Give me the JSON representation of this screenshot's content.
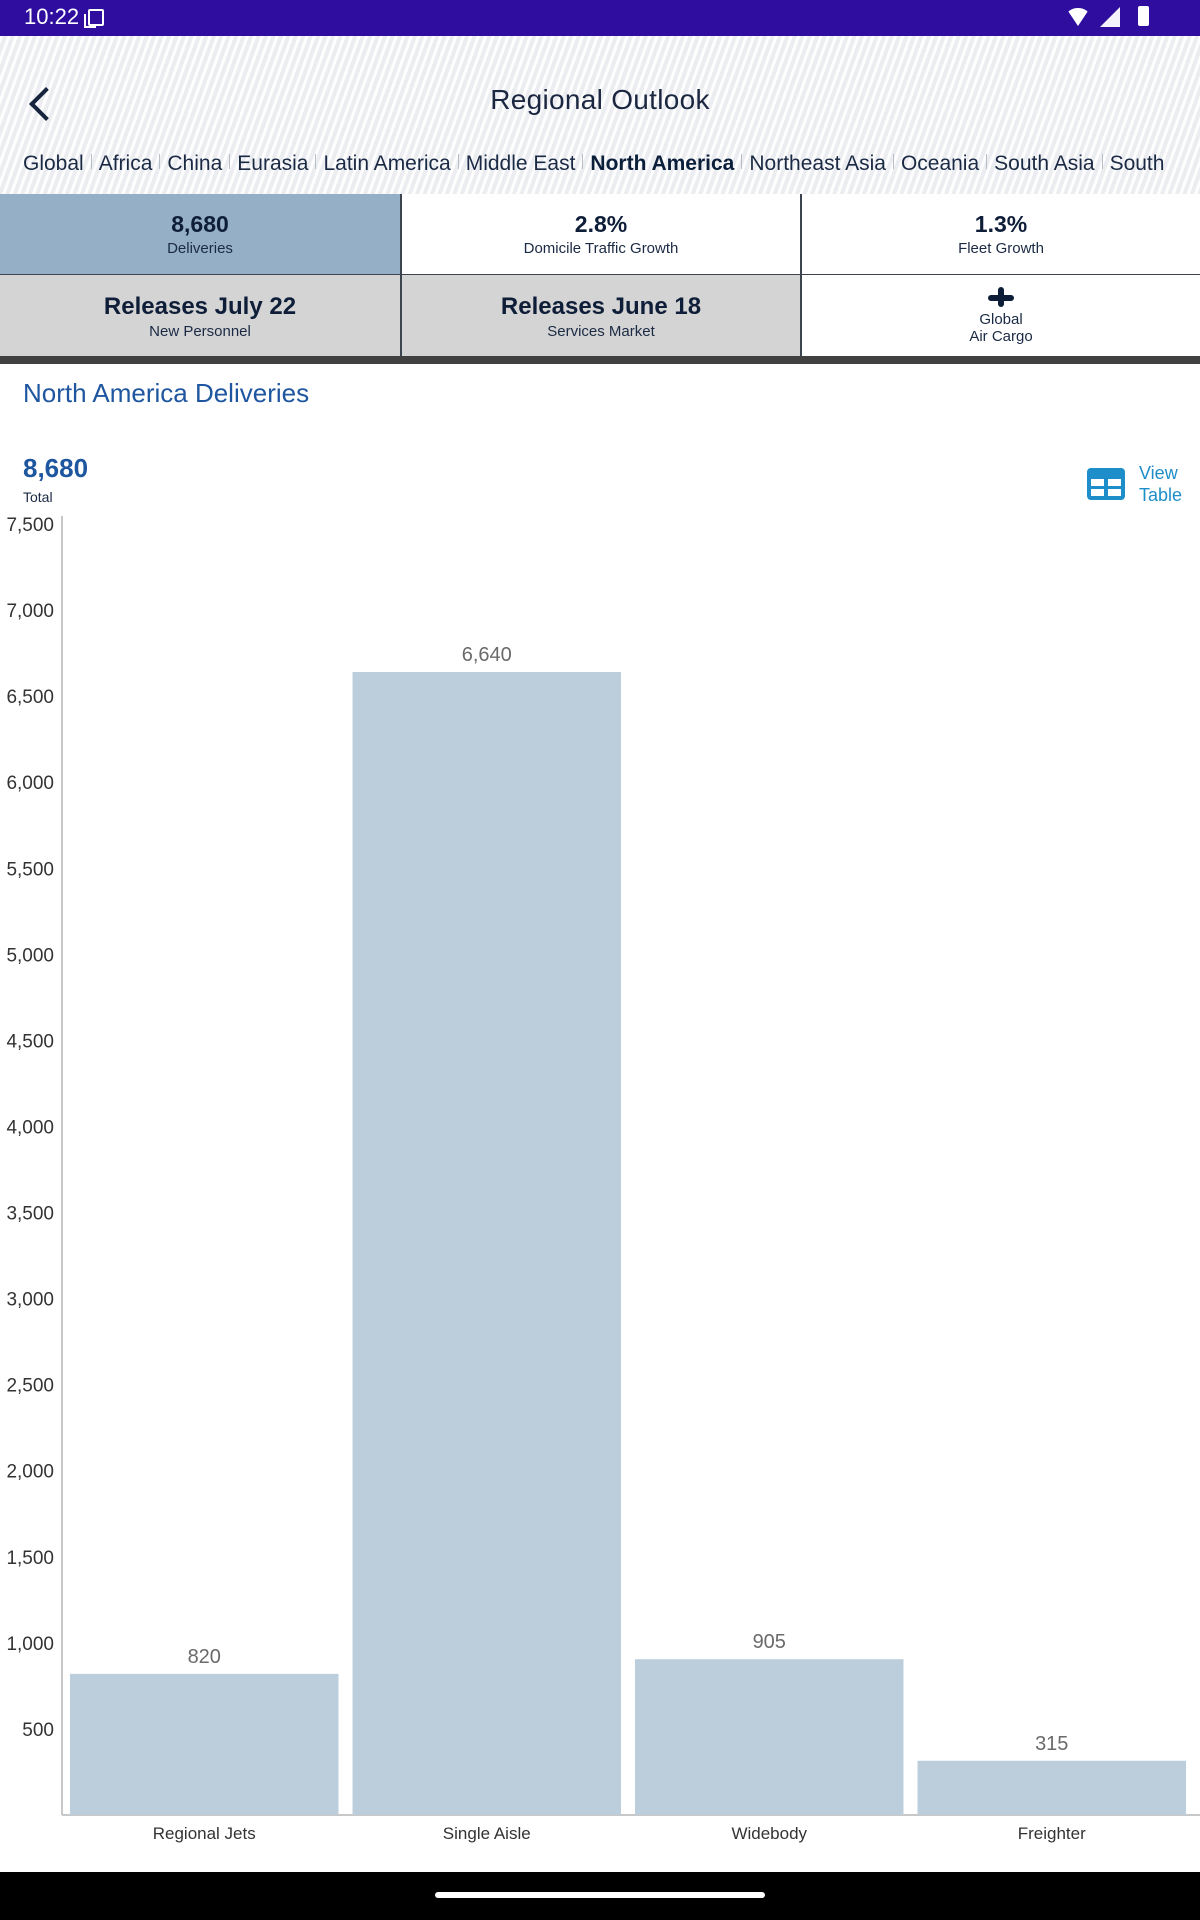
{
  "status_bar": {
    "time": "10:22",
    "icons": [
      "note-icon",
      "wifi-icon",
      "signal-icon",
      "battery-icon"
    ]
  },
  "header": {
    "title": "Regional Outlook",
    "back_icon": "chevron-left-icon"
  },
  "region_tabs": {
    "items": [
      "Global",
      "Africa",
      "China",
      "Eurasia",
      "Latin America",
      "Middle East",
      "North America",
      "Northeast Asia",
      "Oceania",
      "South Asia",
      "South"
    ],
    "active": "North America"
  },
  "stats": {
    "deliveries": {
      "value": "8,680",
      "label": "Deliveries"
    },
    "traffic": {
      "value": "2.8%",
      "label": "Domicile Traffic Growth"
    },
    "fleet": {
      "value": "1.3%",
      "label": "Fleet Growth"
    },
    "personnel": {
      "value": "Releases July 22",
      "label": "New Personnel"
    },
    "services": {
      "value": "Releases June 18",
      "label": "Services Market"
    },
    "cargo": {
      "line1": "Global",
      "line2": "Air Cargo",
      "icon": "airplane-cargo-icon"
    }
  },
  "chart_section": {
    "title": "North America Deliveries",
    "total_value": "8,680",
    "total_label": "Total",
    "view_table_line1": "View",
    "view_table_line2": "Table"
  },
  "chart_data": {
    "type": "bar",
    "categories": [
      "Regional Jets",
      "Single Aisle",
      "Widebody",
      "Freighter"
    ],
    "values": [
      820,
      6640,
      905,
      315
    ],
    "data_labels": [
      "820",
      "6,640",
      "905",
      "315"
    ],
    "ylim": [
      0,
      7500
    ],
    "yticks": [
      500,
      1000,
      1500,
      2000,
      2500,
      3000,
      3500,
      4000,
      4500,
      5000,
      5500,
      6000,
      6500,
      7000,
      7500
    ],
    "ytick_labels": [
      "500",
      "1,000",
      "1,500",
      "2,000",
      "2,500",
      "3,000",
      "3,500",
      "4,000",
      "4,500",
      "5,000",
      "5,500",
      "6,000",
      "6,500",
      "7,000",
      "7,500"
    ],
    "bar_color": "#bccddc",
    "grid": false
  }
}
